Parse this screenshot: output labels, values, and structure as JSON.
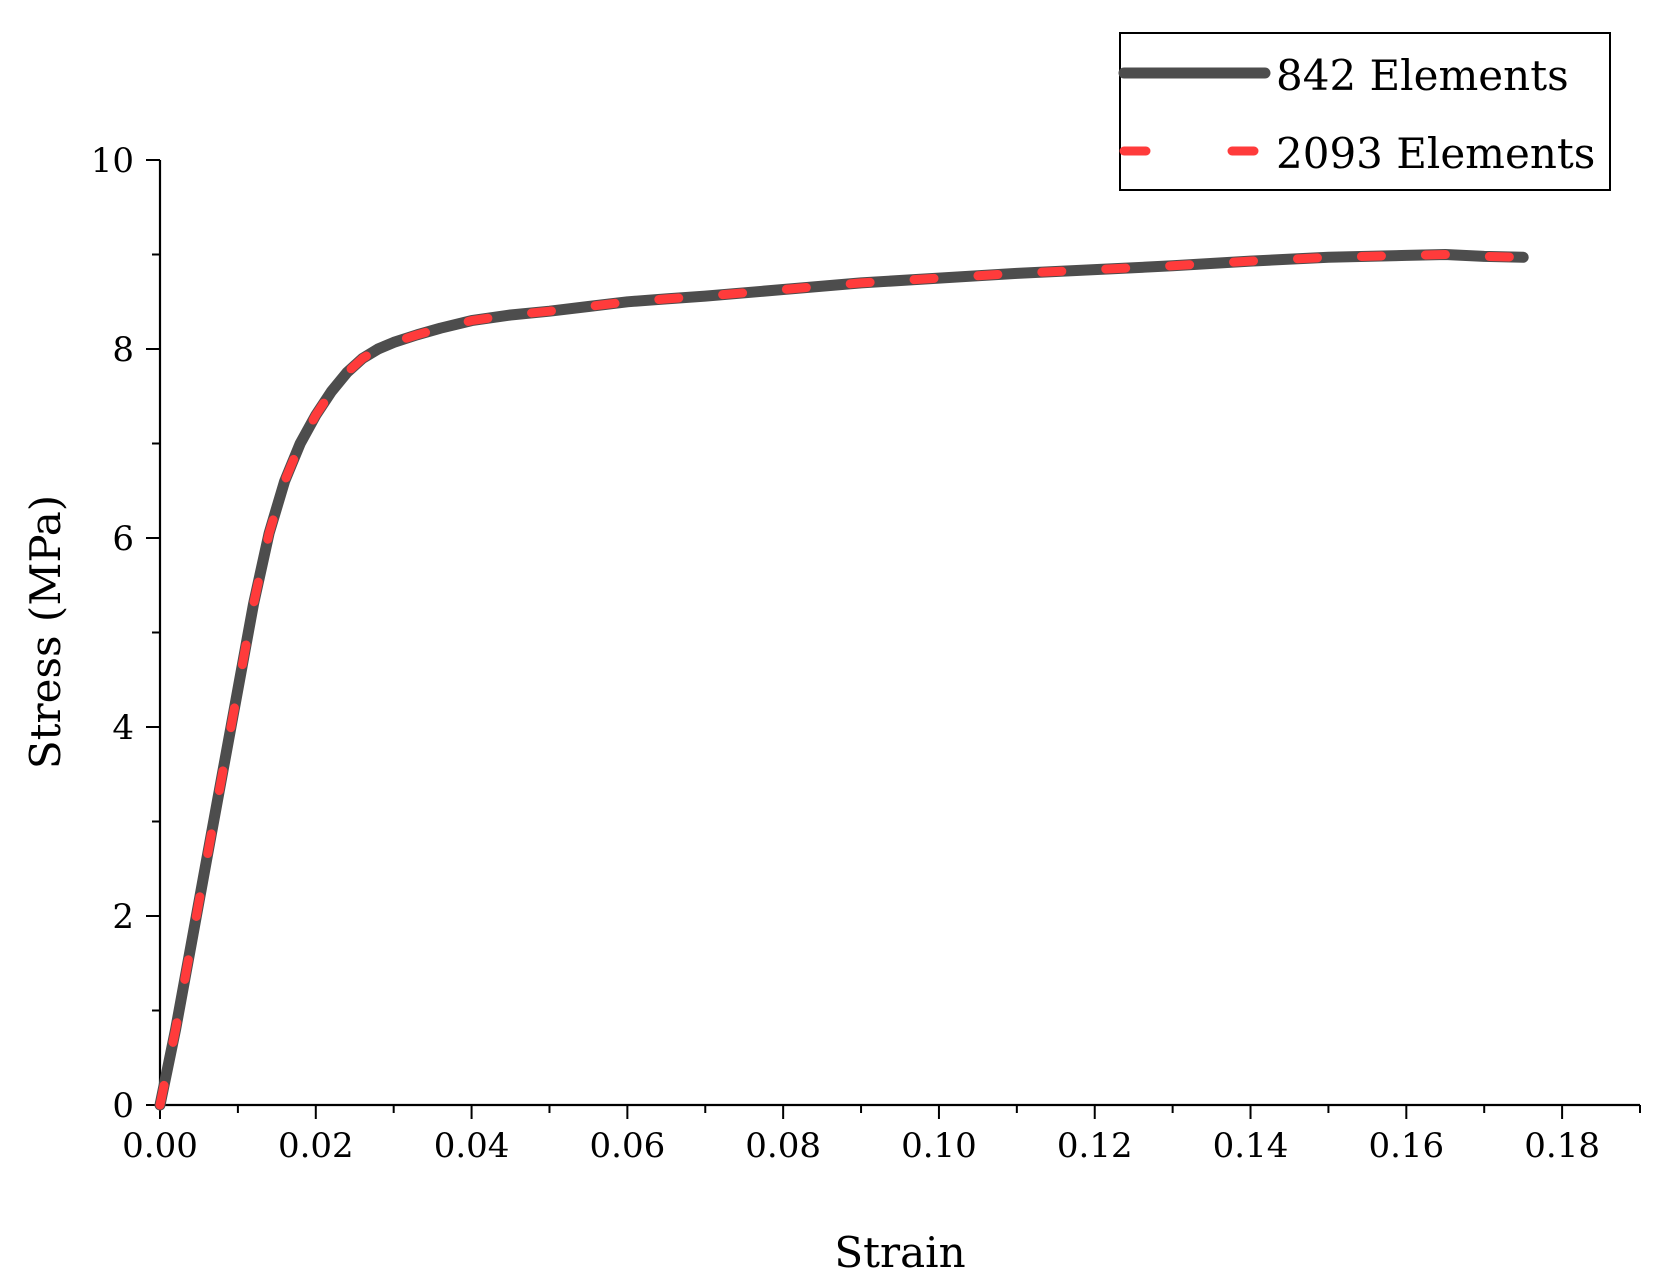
{
  "chart_data": {
    "type": "line",
    "title": "",
    "xlabel": "Strain",
    "ylabel": "Stress (MPa)",
    "xlim": [
      0,
      0.19
    ],
    "ylim": [
      0,
      10
    ],
    "x_ticks": [
      "0.00",
      "0.02",
      "0.04",
      "0.06",
      "0.08",
      "0.10",
      "0.12",
      "0.14",
      "0.16",
      "0.18"
    ],
    "y_ticks": [
      "0",
      "2",
      "4",
      "6",
      "8",
      "10"
    ],
    "grid": false,
    "legend_position": "top-right",
    "series": [
      {
        "name": "842 Elements",
        "color": "#4d4d4d",
        "style": "solid",
        "x": [
          0,
          0.002,
          0.004,
          0.006,
          0.008,
          0.01,
          0.012,
          0.014,
          0.016,
          0.018,
          0.02,
          0.022,
          0.024,
          0.026,
          0.028,
          0.03,
          0.033,
          0.036,
          0.04,
          0.045,
          0.05,
          0.055,
          0.06,
          0.065,
          0.07,
          0.08,
          0.09,
          0.1,
          0.11,
          0.12,
          0.13,
          0.14,
          0.15,
          0.16,
          0.165,
          0.17,
          0.175
        ],
        "y": [
          0,
          0.8,
          1.7,
          2.6,
          3.5,
          4.4,
          5.3,
          6.05,
          6.6,
          7.0,
          7.3,
          7.55,
          7.75,
          7.9,
          8.0,
          8.07,
          8.15,
          8.22,
          8.3,
          8.36,
          8.4,
          8.45,
          8.5,
          8.53,
          8.56,
          8.63,
          8.7,
          8.75,
          8.8,
          8.84,
          8.88,
          8.93,
          8.97,
          8.99,
          9.0,
          8.98,
          8.97
        ]
      },
      {
        "name": "2093 Elements",
        "color": "#ff3b3b",
        "style": "dashed",
        "x": [
          0,
          0.002,
          0.004,
          0.006,
          0.008,
          0.01,
          0.012,
          0.014,
          0.016,
          0.018,
          0.02,
          0.022,
          0.024,
          0.026,
          0.028,
          0.03,
          0.033,
          0.036,
          0.04,
          0.045,
          0.05,
          0.055,
          0.06,
          0.065,
          0.07,
          0.08,
          0.09,
          0.1,
          0.11,
          0.12,
          0.13,
          0.14,
          0.15,
          0.16,
          0.165,
          0.17,
          0.175
        ],
        "y": [
          0,
          0.8,
          1.7,
          2.6,
          3.5,
          4.4,
          5.3,
          6.05,
          6.6,
          7.0,
          7.3,
          7.55,
          7.75,
          7.9,
          8.0,
          8.07,
          8.15,
          8.22,
          8.3,
          8.36,
          8.4,
          8.45,
          8.5,
          8.53,
          8.56,
          8.63,
          8.7,
          8.75,
          8.8,
          8.84,
          8.88,
          8.93,
          8.97,
          8.99,
          9.0,
          8.98,
          8.97
        ]
      }
    ]
  }
}
